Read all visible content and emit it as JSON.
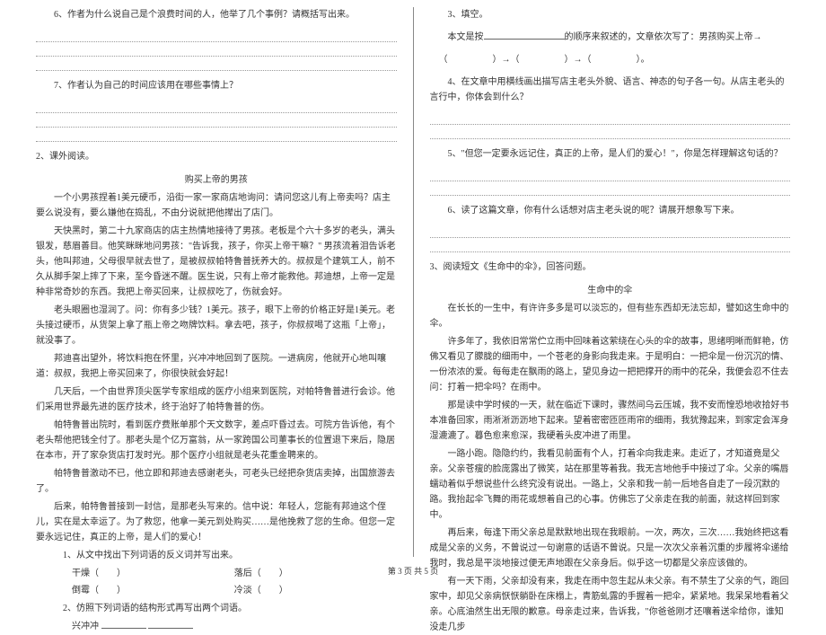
{
  "left": {
    "q6": "6、作者为什么说自己是个浪费时间的人，他举了几个事例？请概括写出来。",
    "q7": "7、作者认为自己的时间应该用在哪些事情上？",
    "section2": "2、课外阅读。",
    "story_title": "购买上帝的男孩",
    "p1": "一个小男孩捏着1美元硬币，沿街一家一家商店地询问：请问您这儿有上帝卖吗？店主要么说没有，要么嫌他在捣乱，不由分说就把他撵出了店门。",
    "p2": "天快黑时，第二十九家商店的店主热情地接待了男孩。老板是个六十多岁的老头，满头银发，慈眉善目。他笑眯眯地问男孩：\"告诉我，孩子，你买上帝干嘛？\" 男孩流着泪告诉老头，他叫邦迪，父母很早就去世了，是被叔叔帕特鲁普抚养大的。叔叔是个建筑工人，前不久从脚手架上摔了下来，至今昏迷不醒。医生说，只有上帝才能救他。邦迪想，上帝一定是种非常奇妙的东西。我把上帝买回来，让叔叔吃了，伤就会好。",
    "p3": "老头眼圈也湿润了。问：你有多少钱？1美元。孩子，眼下上帝的价格正好是1美元。老头接过硬币，从货架上拿了瓶上帝之吻牌饮料。拿去吧，孩子，你叔叔喝了这瓶「上帝」，就没事了。",
    "p4": "邦迪喜出望外，将饮料抱在怀里，兴冲冲地回到了医院。一进病房，他就开心地叫嚷道：叔叔，我把上帝买回来了，你很快就会好起！",
    "p5": "几天后，一个由世界顶尖医学专家组成的医疗小组来到医院，对帕特鲁普进行会诊。他们采用世界最先进的医疗技术，终于治好了帕特鲁普的伤。",
    "p6": "帕特鲁普出院时，看到医疗费账单那个天文数字，差点吓昏过去。可院方告诉他，有个老头帮他把钱全付了。那老头是个亿万富翁，从一家跨国公司董事长的位置退下来后，隐居在本市，开了家杂货店打发时光。那个医疗小组就是老头花重金聘来的。",
    "p7": "帕特鲁普激动不已，他立即和邦迪去感谢老头，可老头已经把杂货店卖掉，出国旅游去了。",
    "p8": "后来，帕特鲁普接到一封信，是那老头写来的。信中说：年轻人，您能有邦迪这个侄儿，实在是太幸运了。为了救您，他拿一美元到处购买……是他挽救了您的生命。但您一定要永远记住，真正的上帝，是人们的爱心！",
    "sub1": "1、从文中找出下列词语的反义词并写出来。",
    "pair1a": "干燥（　　）",
    "pair1b": "落后（　　）",
    "pair2a": "倒霉（　　）",
    "pair2b": "冷淡（　　）",
    "sub2": "2、仿照下列词语的结构形式再写出两个词语。",
    "sub2_word": "兴冲冲"
  },
  "right": {
    "q3": "3、填空。",
    "q3_text_a": "本文是按",
    "q3_text_b": "的顺序来叙述的，文章依次写了：男孩购买上帝→",
    "q3_arrow": "（　　　　　）→（　　　　　）→（　　　　　）。",
    "q4": "4、在文章中用横线画出描写店主老头外貌、语言、神态的句子各一句。从店主老头的言行中，你体会到什么？",
    "q5": "5、\"但您一定要永远记住，真正的上帝，是人们的爱心！\"，你是怎样理解这句话的？",
    "q6r": "6、读了这篇文章，你有什么话想对店主老头说的呢？请展开想象写下来。",
    "section3": "3、阅读短文《生命中的伞》，回答问题。",
    "story2_title": "生命中的伞",
    "r_p1": "在长长的一生中，有许许多多是可以淡忘的，但有些东西却无法忘却，譬如这生命中的伞。",
    "r_p2": "许多年了，我依旧常常伫立雨中回味着这萦绕在心头的伞的故事，思绪明晰而鲜艳，仿佛又看见了朦胧的细雨中，一个苍老的身影向我走来。于是明白：一把伞是一份沉沉的情、一份浓浓的爱。每每走在飘雨的路上，望见身边一把把撑开的雨中的花朵，我便会忍不住去问：打着一把伞吗？在雨中。",
    "r_p3": "那是读中学时候的一天，就在临近下课时，骤然间乌云压城，我不安而惶恐地收拾好书本准备回家，雨淅淅沥沥地下起来。望着密密匝匝雨帘的细雨，我犹豫起来，到家定会浑身湿漉漉了。暮色愈来愈深，我硬着头皮冲进了雨里。",
    "r_p4": "一路小跑。隐隐约约，我看见前面有个人，打着伞向我走来。走近了，才知道竟是父亲。父亲苍瘦的脸庞露出了微笑，站在那里等着我。我无言地他手中接过了伞。父亲的嘴唇蠕动着似乎想说些什么终究没有说出。一路上，父亲和我一前一后地各自走了一段沉默的路。我抬起伞飞舞的雨花或想着自己的心事。仿佛忘了父亲走在我的前面，就这样回到家中。",
    "r_p5": "再后来，每逢下雨父亲总是默默地出现在我眼前。一次，两次，三次……我始终把这看成是父亲的义务，不曾说过一句谢意的话语不曾说。只是一次次父亲着沉重的步履将伞递给我时，我总是平淡地接过便无声地跟在父亲身后。似乎这一切都是父亲应该做的。",
    "r_p6": "有一天下雨，父亲却没有来，我走在雨中忽生起从未父亲。有不禁生了父亲的气，跑回家中，却见父亲病恹恹躺卧在床榻上，青筋虬露的手握着一把伞，紧紧地。我呆呆地看着父亲。心底油然生出无限的歉意。母亲走过来，告诉我，\"你爸爸刚才还嚷着送伞给你，谁知没走几步"
  },
  "footer": "第 3 页 共 5 页"
}
